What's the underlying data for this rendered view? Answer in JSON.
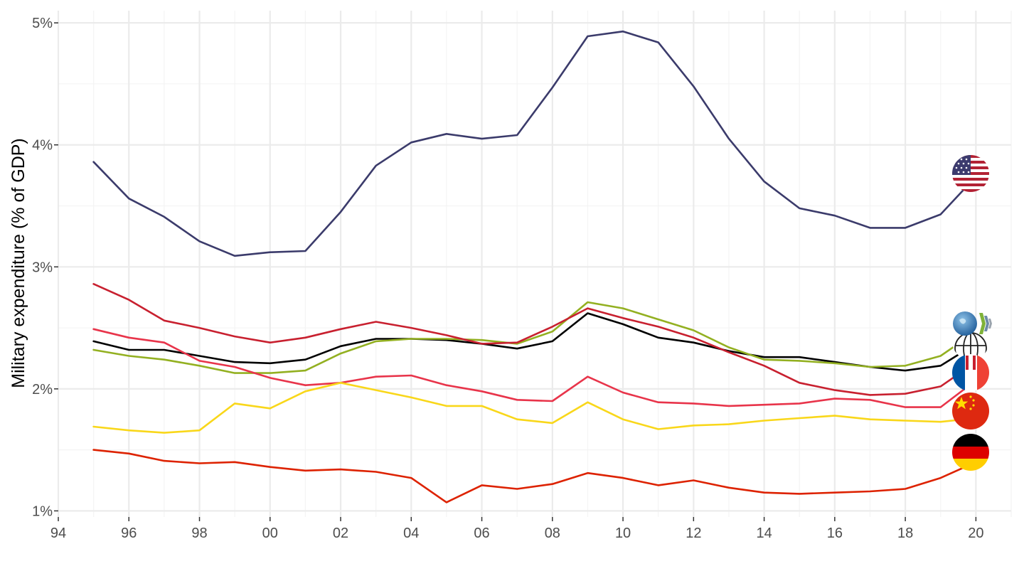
{
  "chart_data": {
    "type": "line",
    "title": "",
    "xlabel": "",
    "ylabel": "Military expenditure (% of GDP)",
    "xlim": [
      1994,
      2021
    ],
    "ylim": [
      0.95,
      5.1
    ],
    "x_ticks": [
      {
        "value": 1994,
        "label": "94"
      },
      {
        "value": 1996,
        "label": "96"
      },
      {
        "value": 1998,
        "label": "98"
      },
      {
        "value": 2000,
        "label": "00"
      },
      {
        "value": 2002,
        "label": "02"
      },
      {
        "value": 2004,
        "label": "04"
      },
      {
        "value": 2006,
        "label": "06"
      },
      {
        "value": 2008,
        "label": "08"
      },
      {
        "value": 2010,
        "label": "10"
      },
      {
        "value": 2012,
        "label": "12"
      },
      {
        "value": 2014,
        "label": "14"
      },
      {
        "value": 2016,
        "label": "16"
      },
      {
        "value": 2018,
        "label": "18"
      },
      {
        "value": 2020,
        "label": "20"
      }
    ],
    "y_ticks": [
      {
        "value": 1,
        "label": "1%"
      },
      {
        "value": 2,
        "label": "2%"
      },
      {
        "value": 3,
        "label": "3%"
      },
      {
        "value": 4,
        "label": "4%"
      },
      {
        "value": 5,
        "label": "5%"
      }
    ],
    "grid": true,
    "legend": "flag icons at line ends",
    "x": [
      1995,
      1996,
      1997,
      1998,
      1999,
      2000,
      2001,
      2002,
      2003,
      2004,
      2005,
      2006,
      2007,
      2008,
      2009,
      2010,
      2011,
      2012,
      2013,
      2014,
      2015,
      2016,
      2017,
      2018,
      2019,
      2020
    ],
    "series": [
      {
        "flag": "usa",
        "color": "#3b3b6b",
        "values": [
          3.86,
          3.56,
          3.41,
          3.21,
          3.09,
          3.12,
          3.13,
          3.45,
          3.83,
          4.02,
          4.09,
          4.05,
          4.08,
          4.47,
          4.89,
          4.93,
          4.84,
          4.48,
          4.05,
          3.7,
          3.48,
          3.42,
          3.32,
          3.32,
          3.43,
          3.74
        ]
      },
      {
        "flag": "oecd",
        "color": "#000000",
        "values": [
          2.39,
          2.32,
          2.32,
          2.27,
          2.22,
          2.21,
          2.24,
          2.35,
          2.41,
          2.41,
          2.4,
          2.37,
          2.33,
          2.39,
          2.62,
          2.53,
          2.42,
          2.38,
          2.31,
          2.26,
          2.26,
          2.22,
          2.18,
          2.15,
          2.19,
          2.37
        ]
      },
      {
        "flag": "world",
        "color": "#93b021",
        "values": [
          2.32,
          2.27,
          2.24,
          2.19,
          2.13,
          2.13,
          2.15,
          2.29,
          2.39,
          2.41,
          2.41,
          2.4,
          2.37,
          2.47,
          2.71,
          2.66,
          2.57,
          2.48,
          2.34,
          2.24,
          2.23,
          2.21,
          2.18,
          2.19,
          2.27,
          2.47
        ]
      },
      {
        "flag": "uk",
        "color": "#c8202f",
        "values": [
          2.86,
          2.73,
          2.56,
          2.5,
          2.43,
          2.38,
          2.42,
          2.49,
          2.55,
          2.5,
          2.44,
          2.37,
          2.38,
          2.51,
          2.66,
          2.58,
          2.51,
          2.42,
          2.3,
          2.19,
          2.05,
          1.99,
          1.95,
          1.96,
          2.02,
          2.22
        ]
      },
      {
        "flag": "france",
        "color": "#e8344a",
        "values": [
          2.49,
          2.42,
          2.38,
          2.23,
          2.18,
          2.09,
          2.03,
          2.05,
          2.1,
          2.11,
          2.03,
          1.98,
          1.91,
          1.9,
          2.1,
          1.97,
          1.89,
          1.88,
          1.86,
          1.87,
          1.88,
          1.92,
          1.91,
          1.85,
          1.85,
          2.07
        ]
      },
      {
        "flag": "china",
        "color": "#f9d71a",
        "values": [
          1.69,
          1.66,
          1.64,
          1.66,
          1.88,
          1.84,
          1.98,
          2.05,
          1.99,
          1.93,
          1.86,
          1.86,
          1.75,
          1.72,
          1.89,
          1.75,
          1.67,
          1.7,
          1.71,
          1.74,
          1.76,
          1.78,
          1.75,
          1.74,
          1.73,
          1.76
        ]
      },
      {
        "flag": "germany",
        "color": "#dd2200",
        "values": [
          1.5,
          1.47,
          1.41,
          1.39,
          1.4,
          1.36,
          1.33,
          1.34,
          1.32,
          1.27,
          1.07,
          1.21,
          1.18,
          1.22,
          1.31,
          1.27,
          1.21,
          1.25,
          1.19,
          1.15,
          1.14,
          1.15,
          1.16,
          1.18,
          1.27,
          1.4
        ]
      }
    ]
  },
  "legend_icons": [
    {
      "name": "usa-flag-icon",
      "series": "usa",
      "value": 3.74
    },
    {
      "name": "oecd-logo-icon",
      "series": "oecd",
      "value": 2.5
    },
    {
      "name": "world-globe-icon",
      "series": "world",
      "value": 2.3
    },
    {
      "name": "france-flag-icon",
      "series": "france",
      "value": 2.07
    },
    {
      "name": "china-flag-icon",
      "series": "china",
      "value": 1.76
    },
    {
      "name": "germany-flag-icon",
      "series": "germany",
      "value": 1.4
    }
  ],
  "colors": {
    "background": "#ffffff",
    "grid_major": "#ebebeb",
    "grid_minor": "#f4f4f4",
    "tick_text": "#4d4d4d"
  }
}
